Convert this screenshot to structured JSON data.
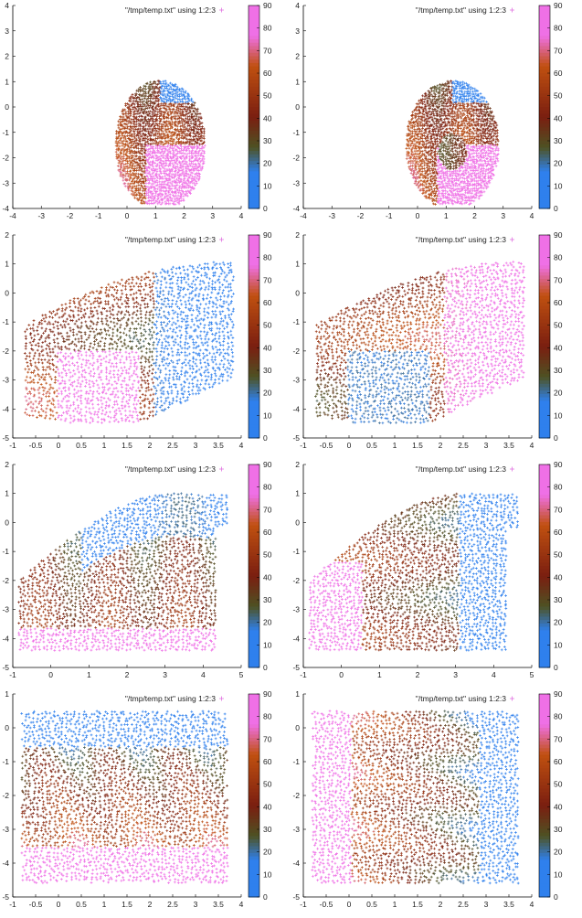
{
  "colors": {
    "blue": "#2f80ed",
    "olive": "#4e5223",
    "brown": "#7a1e10",
    "orange": "#c05010",
    "pink": "#ef70e6",
    "legend_marker": "#e070e0",
    "axis": "#000000"
  },
  "chart_data": [
    {
      "type": "scatter",
      "legend": "\"/tmp/temp.txt\" using 1:2:3",
      "xlim": [
        -4,
        4
      ],
      "ylim": [
        -4,
        4
      ],
      "xticks": [
        "-4",
        "-3",
        "-2",
        "-1",
        "0",
        "1",
        "2",
        "3",
        "4"
      ],
      "yticks": [
        "-4",
        "-3",
        "-2",
        "-1",
        "0",
        "1",
        "2",
        "3",
        "4"
      ],
      "cblim": [
        0,
        90
      ],
      "cbticks": [
        "0",
        "10",
        "20",
        "30",
        "40",
        "50",
        "60",
        "70",
        "80",
        "90"
      ],
      "shape": "sphere",
      "twist": 0,
      "region": {
        "x": [
          -0.7,
          2.7
        ],
        "y": [
          -3.8,
          1.3
        ]
      }
    },
    {
      "type": "scatter",
      "legend": "\"/tmp/temp.txt\" using 1:2:3",
      "xlim": [
        -4,
        4
      ],
      "ylim": [
        -4,
        4
      ],
      "xticks": [
        "-4",
        "-3",
        "-2",
        "-1",
        "0",
        "1",
        "2",
        "3",
        "4"
      ],
      "yticks": [
        "-4",
        "-3",
        "-2",
        "-1",
        "0",
        "1",
        "2",
        "3",
        "4"
      ],
      "cblim": [
        0,
        90
      ],
      "cbticks": [
        "0",
        "10",
        "20",
        "30",
        "40",
        "50",
        "60",
        "70",
        "80",
        "90"
      ],
      "shape": "sphere",
      "twist": 1,
      "region": {
        "x": [
          -0.7,
          2.8
        ],
        "y": [
          -3.8,
          1.3
        ]
      }
    },
    {
      "type": "scatter",
      "legend": "\"/tmp/temp.txt\" using 1:2:3",
      "xlim": [
        -1,
        4
      ],
      "ylim": [
        -5,
        2
      ],
      "xticks": [
        "-1",
        "-0.5",
        "0",
        "0.5",
        "1",
        "1.5",
        "2",
        "2.5",
        "3",
        "3.5",
        "4"
      ],
      "yticks": [
        "-5",
        "-4",
        "-3",
        "-2",
        "-1",
        "0",
        "1",
        "2"
      ],
      "cblim": [
        0,
        90
      ],
      "cbticks": [
        "0",
        "10",
        "20",
        "30",
        "40",
        "50",
        "60",
        "70",
        "80",
        "90"
      ],
      "shape": "sheet",
      "twist": 0,
      "region": {
        "x": [
          -0.7,
          3.8
        ],
        "y": [
          -4.8,
          1.4
        ]
      }
    },
    {
      "type": "scatter",
      "legend": "\"/tmp/temp.txt\" using 1:2:3",
      "xlim": [
        -1,
        4
      ],
      "ylim": [
        -5,
        2
      ],
      "xticks": [
        "-1",
        "-0.5",
        "0",
        "0.5",
        "1",
        "1.5",
        "2",
        "2.5",
        "3",
        "3.5",
        "4"
      ],
      "yticks": [
        "-5",
        "-4",
        "-3",
        "-2",
        "-1",
        "0",
        "1",
        "2"
      ],
      "cblim": [
        0,
        90
      ],
      "cbticks": [
        "0",
        "10",
        "20",
        "30",
        "40",
        "50",
        "60",
        "70",
        "80",
        "90"
      ],
      "shape": "sheet",
      "twist": 1,
      "region": {
        "x": [
          -0.7,
          3.8
        ],
        "y": [
          -4.8,
          1.4
        ]
      }
    },
    {
      "type": "scatter",
      "legend": "\"/tmp/temp.txt\" using 1:2:3",
      "xlim": [
        -1,
        5
      ],
      "ylim": [
        -5,
        2
      ],
      "xticks": [
        "-1",
        "0",
        "1",
        "2",
        "3",
        "4",
        "5"
      ],
      "yticks": [
        "-5",
        "-4",
        "-3",
        "-2",
        "-1",
        "0",
        "1",
        "2"
      ],
      "cblim": [
        0,
        90
      ],
      "cbticks": [
        "0",
        "10",
        "20",
        "30",
        "40",
        "50",
        "60",
        "70",
        "80",
        "90"
      ],
      "shape": "wave",
      "twist": 0,
      "region": {
        "x": [
          -0.8,
          4.6
        ],
        "y": [
          -4.6,
          1.3
        ]
      }
    },
    {
      "type": "scatter",
      "legend": "\"/tmp/temp.txt\" using 1:2:3",
      "xlim": [
        -1,
        5
      ],
      "ylim": [
        -5,
        2
      ],
      "xticks": [
        "-1",
        "0",
        "1",
        "2",
        "3",
        "4",
        "5"
      ],
      "yticks": [
        "-5",
        "-4",
        "-3",
        "-2",
        "-1",
        "0",
        "1",
        "2"
      ],
      "cblim": [
        0,
        90
      ],
      "cbticks": [
        "0",
        "10",
        "20",
        "30",
        "40",
        "50",
        "60",
        "70",
        "80",
        "90"
      ],
      "shape": "wave",
      "twist": 1,
      "region": {
        "x": [
          -0.8,
          4.6
        ],
        "y": [
          -4.6,
          1.3
        ]
      }
    },
    {
      "type": "scatter",
      "legend": "\"/tmp/temp.txt\" using 1:2:3",
      "xlim": [
        -1,
        4
      ],
      "ylim": [
        -5,
        1
      ],
      "xticks": [
        "-1",
        "-0.5",
        "0",
        "0.5",
        "1",
        "1.5",
        "2",
        "2.5",
        "3",
        "3.5",
        "4"
      ],
      "yticks": [
        "-5",
        "-4",
        "-3",
        "-2",
        "-1",
        "0",
        "1"
      ],
      "cblim": [
        0,
        90
      ],
      "cbticks": [
        "0",
        "10",
        "20",
        "30",
        "40",
        "50",
        "60",
        "70",
        "80",
        "90"
      ],
      "shape": "square",
      "twist": 0,
      "region": {
        "x": [
          -0.9,
          3.8
        ],
        "y": [
          -4.7,
          0.6
        ]
      }
    },
    {
      "type": "scatter",
      "legend": "\"/tmp/temp.txt\" using 1:2:3",
      "xlim": [
        -1,
        4
      ],
      "ylim": [
        -5,
        1
      ],
      "xticks": [
        "-1",
        "-0.5",
        "0",
        "0.5",
        "1",
        "1.5",
        "2",
        "2.5",
        "3",
        "3.5",
        "4"
      ],
      "yticks": [
        "-5",
        "-4",
        "-3",
        "-2",
        "-1",
        "0",
        "1"
      ],
      "cblim": [
        0,
        90
      ],
      "cbticks": [
        "0",
        "10",
        "20",
        "30",
        "40",
        "50",
        "60",
        "70",
        "80",
        "90"
      ],
      "shape": "square",
      "twist": 1,
      "region": {
        "x": [
          -0.9,
          3.8
        ],
        "y": [
          -4.7,
          0.6
        ]
      }
    }
  ]
}
